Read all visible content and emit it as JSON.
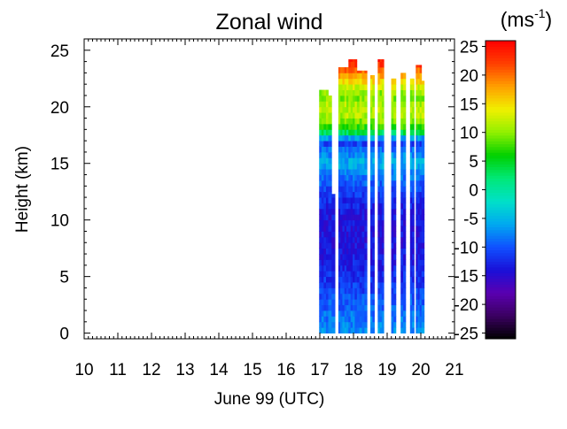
{
  "chart_data": {
    "type": "heatmap",
    "title": "Zonal wind",
    "xlabel": "June 99 (UTC)",
    "ylabel": "Height (km)",
    "colorbar_label_base": "(ms",
    "colorbar_label_sup": "-1",
    "colorbar_label_close": ")",
    "xlim": [
      10,
      21
    ],
    "ylim": [
      -0.5,
      26
    ],
    "x_ticks": [
      "10",
      "11",
      "12",
      "13",
      "14",
      "15",
      "16",
      "17",
      "18",
      "19",
      "20",
      "21"
    ],
    "y_ticks": [
      "0",
      "5",
      "10",
      "15",
      "20",
      "25"
    ],
    "colorbar_ticks": [
      "25",
      "20",
      "15",
      "10",
      "5",
      "0",
      "-5",
      "-10",
      "-15",
      "-20",
      "-25"
    ],
    "colorbar_range": [
      -26,
      26
    ],
    "colors": {
      "-26": "#000000",
      "-22": "#3a0060",
      "-18": "#5a00b0",
      "-14": "#1a10d8",
      "-10": "#1050ff",
      "-6": "#00a8f0",
      "-2": "#00e0c8",
      "2": "#00e878",
      "6": "#00d000",
      "10": "#90f000",
      "14": "#f0f000",
      "18": "#ffa000",
      "22": "#ff4000",
      "26": "#ff0000"
    },
    "profiles": [
      {
        "x0": 16.98,
        "x1": 17.25,
        "top": 21.5,
        "cols": 4
      },
      {
        "x0": 17.25,
        "x1": 17.35,
        "top": 21.0,
        "cols": 1
      },
      {
        "x0": 17.35,
        "x1": 17.45,
        "top": 12.3,
        "cols": 1
      },
      {
        "x0": 17.55,
        "x1": 17.85,
        "top": 23.5,
        "cols": 5
      },
      {
        "x0": 17.85,
        "x1": 18.1,
        "top": 24.2,
        "cols": 4
      },
      {
        "x0": 18.1,
        "x1": 18.4,
        "top": 23.2,
        "cols": 4
      },
      {
        "x0": 18.5,
        "x1": 18.62,
        "top": 22.8,
        "cols": 2
      },
      {
        "x0": 18.72,
        "x1": 18.9,
        "top": 24.2,
        "cols": 3
      },
      {
        "x0": 19.12,
        "x1": 19.26,
        "top": 22.5,
        "cols": 2
      },
      {
        "x0": 19.4,
        "x1": 19.55,
        "top": 23.0,
        "cols": 2
      },
      {
        "x0": 19.68,
        "x1": 19.8,
        "top": 22.5,
        "cols": 2
      },
      {
        "x0": 19.85,
        "x1": 20.02,
        "top": 23.7,
        "cols": 3
      },
      {
        "x0": 20.02,
        "x1": 20.1,
        "top": 22.3,
        "cols": 1
      }
    ],
    "wind_profile_by_height": [
      {
        "z": 0,
        "u": -7
      },
      {
        "z": 2,
        "u": -9
      },
      {
        "z": 4,
        "u": -11
      },
      {
        "z": 6,
        "u": -13
      },
      {
        "z": 8,
        "u": -14
      },
      {
        "z": 10,
        "u": -14
      },
      {
        "z": 12,
        "u": -12
      },
      {
        "z": 14,
        "u": -8
      },
      {
        "z": 15,
        "u": -5
      },
      {
        "z": 16,
        "u": -8
      },
      {
        "z": 17,
        "u": -12
      },
      {
        "z": 17.5,
        "u": 0
      },
      {
        "z": 18,
        "u": 6
      },
      {
        "z": 19,
        "u": 11
      },
      {
        "z": 20,
        "u": 12
      },
      {
        "z": 21,
        "u": 9
      },
      {
        "z": 22,
        "u": 14
      },
      {
        "z": 23,
        "u": 19
      },
      {
        "z": 24,
        "u": 24
      }
    ]
  }
}
